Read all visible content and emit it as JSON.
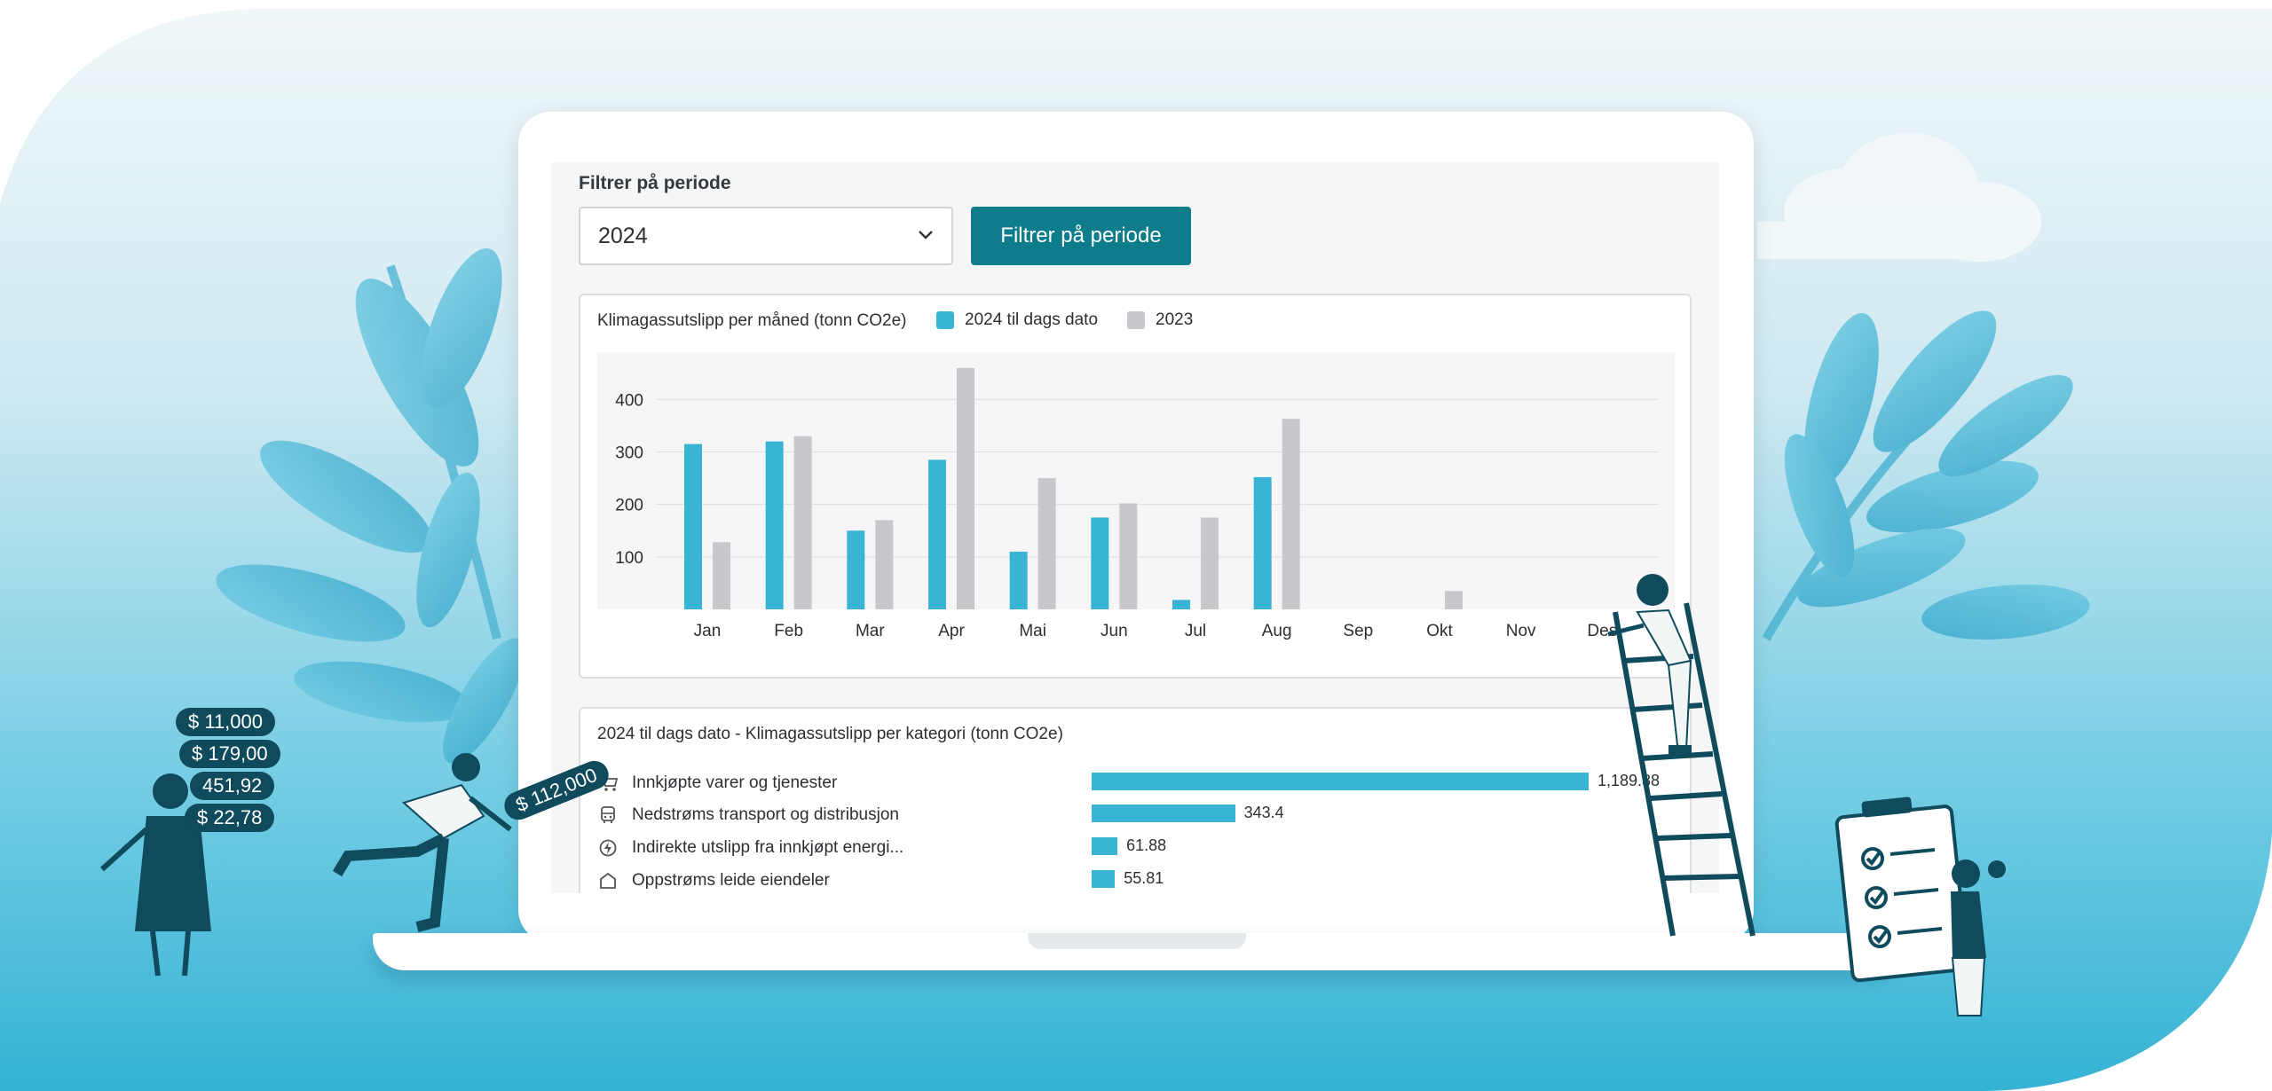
{
  "filter": {
    "label": "Filtrer på periode",
    "selected_period": "2024",
    "button_label": "Filtrer på periode"
  },
  "monthly_chart": {
    "title": "Klimagassutslipp per måned (tonn CO2e)",
    "legend": [
      {
        "label": "2024 til dags dato",
        "color": "#3ab4d4"
      },
      {
        "label": "2023",
        "color": "#c6c8cb"
      }
    ]
  },
  "category_chart": {
    "title": "2024 til dags dato - Klimagassutslipp per kategori (tonn CO2e)",
    "items": [
      {
        "label": "Innkjøpte varer og tjenester",
        "value": 1189.88,
        "value_text": "1,189.88",
        "icon": "cart-icon"
      },
      {
        "label": "Nedstrøms transport og distribusjon",
        "value": 343.4,
        "value_text": "343.4",
        "icon": "bus-icon"
      },
      {
        "label": "Indirekte utslipp fra innkjøpt energi...",
        "value": 61.88,
        "value_text": "61.88",
        "icon": "energy-icon"
      },
      {
        "label": "Oppstrøms leide eiendeler",
        "value": 55.81,
        "value_text": "55.81",
        "icon": "building-icon"
      }
    ]
  },
  "chart_data": [
    {
      "type": "bar",
      "title": "Klimagassutslipp per måned (tonn CO2e)",
      "categories": [
        "Jan",
        "Feb",
        "Mar",
        "Apr",
        "Mai",
        "Jun",
        "Jul",
        "Aug",
        "Sep",
        "Okt",
        "Nov",
        "Des"
      ],
      "series": [
        {
          "name": "2024 til dags dato",
          "color": "#3ab4d4",
          "values": [
            315,
            320,
            150,
            285,
            110,
            175,
            18,
            252,
            0,
            0,
            0,
            0
          ]
        },
        {
          "name": "2023",
          "color": "#c6c8cb",
          "values": [
            128,
            330,
            170,
            460,
            250,
            202,
            175,
            363,
            0,
            35,
            0,
            0
          ]
        }
      ],
      "yticks": [
        100,
        200,
        300,
        400
      ],
      "ylim": [
        0,
        480
      ],
      "grid": true,
      "legend_position": "top-left"
    },
    {
      "type": "bar",
      "orientation": "horizontal",
      "title": "2024 til dags dato - Klimagassutslipp per kategori (tonn CO2e)",
      "categories": [
        "Innkjøpte varer og tjenester",
        "Nedstrøms transport og distribusjon",
        "Indirekte utslipp fra innkjøpt energi...",
        "Oppstrøms leide eiendeler"
      ],
      "values": [
        1189.88,
        343.4,
        61.88,
        55.81
      ],
      "color": "#3ab4d4"
    }
  ],
  "illustration": {
    "money_tags": [
      "$ 11,000",
      "$ 179,00",
      "451,92",
      "$ 22,78"
    ],
    "thrown_tag": "$ 112,000",
    "palette": {
      "sky_top": "#e9f3f6",
      "sky_bottom": "#3fb6d6",
      "ink": "#0f4b5c",
      "leaf": "#5fc2dd"
    }
  }
}
